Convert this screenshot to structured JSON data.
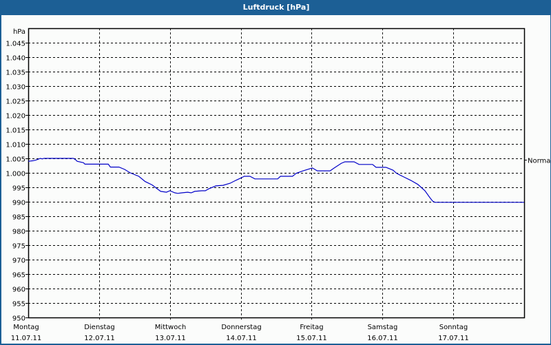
{
  "window": {
    "title": "Luftdruck [hPa]"
  },
  "chart_data": {
    "type": "line",
    "title": "Luftdruck [hPa]",
    "ylabel": "hPa",
    "xlabel": "",
    "ylim": [
      950,
      1050
    ],
    "y_ticks": [
      "1.045",
      "1.040",
      "1.035",
      "1.030",
      "1.025",
      "1.020",
      "1.015",
      "1.010",
      "1.005",
      "1.000",
      "995",
      "990",
      "985",
      "980",
      "975",
      "970",
      "965",
      "960",
      "955",
      "950"
    ],
    "x_ticks": [
      {
        "day": "Montag",
        "date": "11.07.11"
      },
      {
        "day": "Dienstag",
        "date": "12.07.11"
      },
      {
        "day": "Mittwoch",
        "date": "13.07.11"
      },
      {
        "day": "Donnerstag",
        "date": "14.07.11"
      },
      {
        "day": "Freitag",
        "date": "15.07.11"
      },
      {
        "day": "Samstag",
        "date": "16.07.11"
      },
      {
        "day": "Sonntag",
        "date": "17.07.11"
      }
    ],
    "grid": true,
    "reference_line": {
      "label": "Normal",
      "value": 1005
    },
    "series": [
      {
        "name": "Luftdruck",
        "color": "#0000c8",
        "x_days": [
          0.0,
          0.07,
          0.12,
          0.17,
          0.2,
          0.22,
          0.64,
          0.67,
          0.69,
          0.78,
          0.8,
          1.13,
          1.16,
          1.28,
          1.36,
          1.44,
          1.56,
          1.65,
          1.75,
          1.83,
          1.87,
          1.95,
          2.0,
          2.07,
          2.11,
          2.17,
          2.25,
          2.3,
          2.35,
          2.45,
          2.5,
          2.55,
          2.65,
          2.75,
          2.85,
          2.93,
          3.01,
          3.05,
          3.13,
          3.2,
          3.52,
          3.56,
          3.73,
          3.78,
          3.88,
          4.01,
          4.08,
          4.26,
          4.32,
          4.42,
          4.47,
          4.6,
          4.67,
          4.86,
          4.91,
          5.05,
          5.15,
          5.2,
          5.3,
          5.4,
          5.5,
          5.6,
          5.67,
          5.71,
          5.74,
          7.0
        ],
        "values": [
          1004,
          1004.2,
          1004.5,
          1005,
          1004.8,
          1005,
          1005,
          1004.5,
          1004,
          1003.5,
          1003,
          1003,
          1002,
          1002,
          1001.2,
          1000,
          998.8,
          997,
          995.8,
          994.3,
          993.6,
          993.3,
          993.8,
          993.1,
          992.9,
          993.1,
          993.3,
          993.1,
          993.6,
          993.8,
          993.8,
          994.5,
          995.5,
          995.7,
          996.4,
          997.4,
          998.3,
          998.8,
          998.8,
          997.9,
          997.9,
          998.8,
          998.8,
          999.8,
          1000.7,
          1001.7,
          1000.7,
          1000.7,
          1001.7,
          1003.3,
          1003.8,
          1003.8,
          1002.9,
          1002.9,
          1001.9,
          1001.9,
          1000.9,
          999.8,
          998.6,
          997.4,
          996,
          993.8,
          991.4,
          990.2,
          989.8,
          989.8
        ]
      }
    ]
  }
}
